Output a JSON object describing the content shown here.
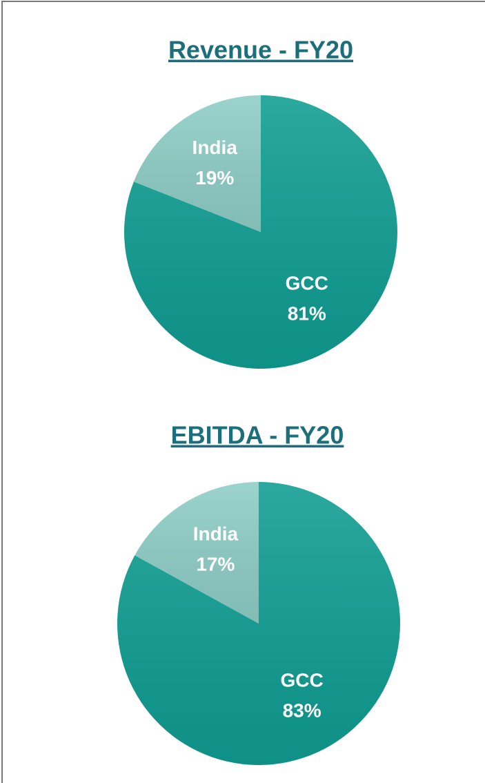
{
  "chart_data": [
    {
      "type": "pie",
      "title": "Revenue - FY20",
      "categories": [
        "GCC",
        "India"
      ],
      "values": [
        81,
        19
      ],
      "value_labels": [
        "81%",
        "19%"
      ],
      "colors": [
        "#0f9d92",
        "#8ecdc6"
      ]
    },
    {
      "type": "pie",
      "title": "EBITDA - FY20",
      "categories": [
        "GCC",
        "India"
      ],
      "values": [
        83,
        17
      ],
      "value_labels": [
        "83%",
        "17%"
      ],
      "colors": [
        "#0f9d92",
        "#8ecdc6"
      ]
    }
  ]
}
